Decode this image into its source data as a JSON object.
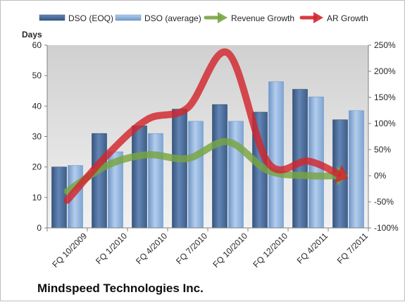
{
  "chart_data": {
    "type": "bar",
    "title": "",
    "company": "Mindspeed Technologies Inc.",
    "ylabel": "Days",
    "xlabel": "",
    "ylim": [
      0,
      60
    ],
    "y_ticks": [
      0,
      10,
      20,
      30,
      40,
      50,
      60
    ],
    "y2lim": [
      -100,
      250
    ],
    "y2_ticks": [
      "-100%",
      "-50%",
      "0%",
      "50%",
      "100%",
      "150%",
      "200%",
      "250%"
    ],
    "y2_values": [
      -100,
      -50,
      0,
      50,
      100,
      150,
      200,
      250
    ],
    "grid": false,
    "legend_position": "top",
    "categories": [
      "FQ 10/2009",
      "FQ 1/2010",
      "FQ 4/2010",
      "FQ 7/2010",
      "FQ 10/2010",
      "FQ 12/2010",
      "FQ 4/2011",
      "FQ 7/2011"
    ],
    "series": [
      {
        "name": "DSO (EOQ)",
        "kind": "bar",
        "axis": "left",
        "color": "#4a6d9a",
        "values": [
          20,
          31,
          33.5,
          39,
          40.5,
          38,
          45.5,
          35.5
        ]
      },
      {
        "name": "DSO (average)",
        "kind": "bar",
        "axis": "left",
        "color": "#8eb4e3",
        "values": [
          20.5,
          25,
          31,
          35,
          35,
          48,
          43,
          38.5
        ]
      },
      {
        "name": "Revenue Growth",
        "kind": "arrow-line",
        "axis": "right",
        "color": "#77a541",
        "values": [
          -30,
          20,
          40,
          33,
          65,
          10,
          0,
          0
        ]
      },
      {
        "name": "AR Growth",
        "kind": "arrow-line",
        "axis": "right",
        "color": "#d2262d",
        "values": [
          -47,
          40,
          108,
          130,
          235,
          25,
          28,
          -5
        ]
      }
    ]
  }
}
